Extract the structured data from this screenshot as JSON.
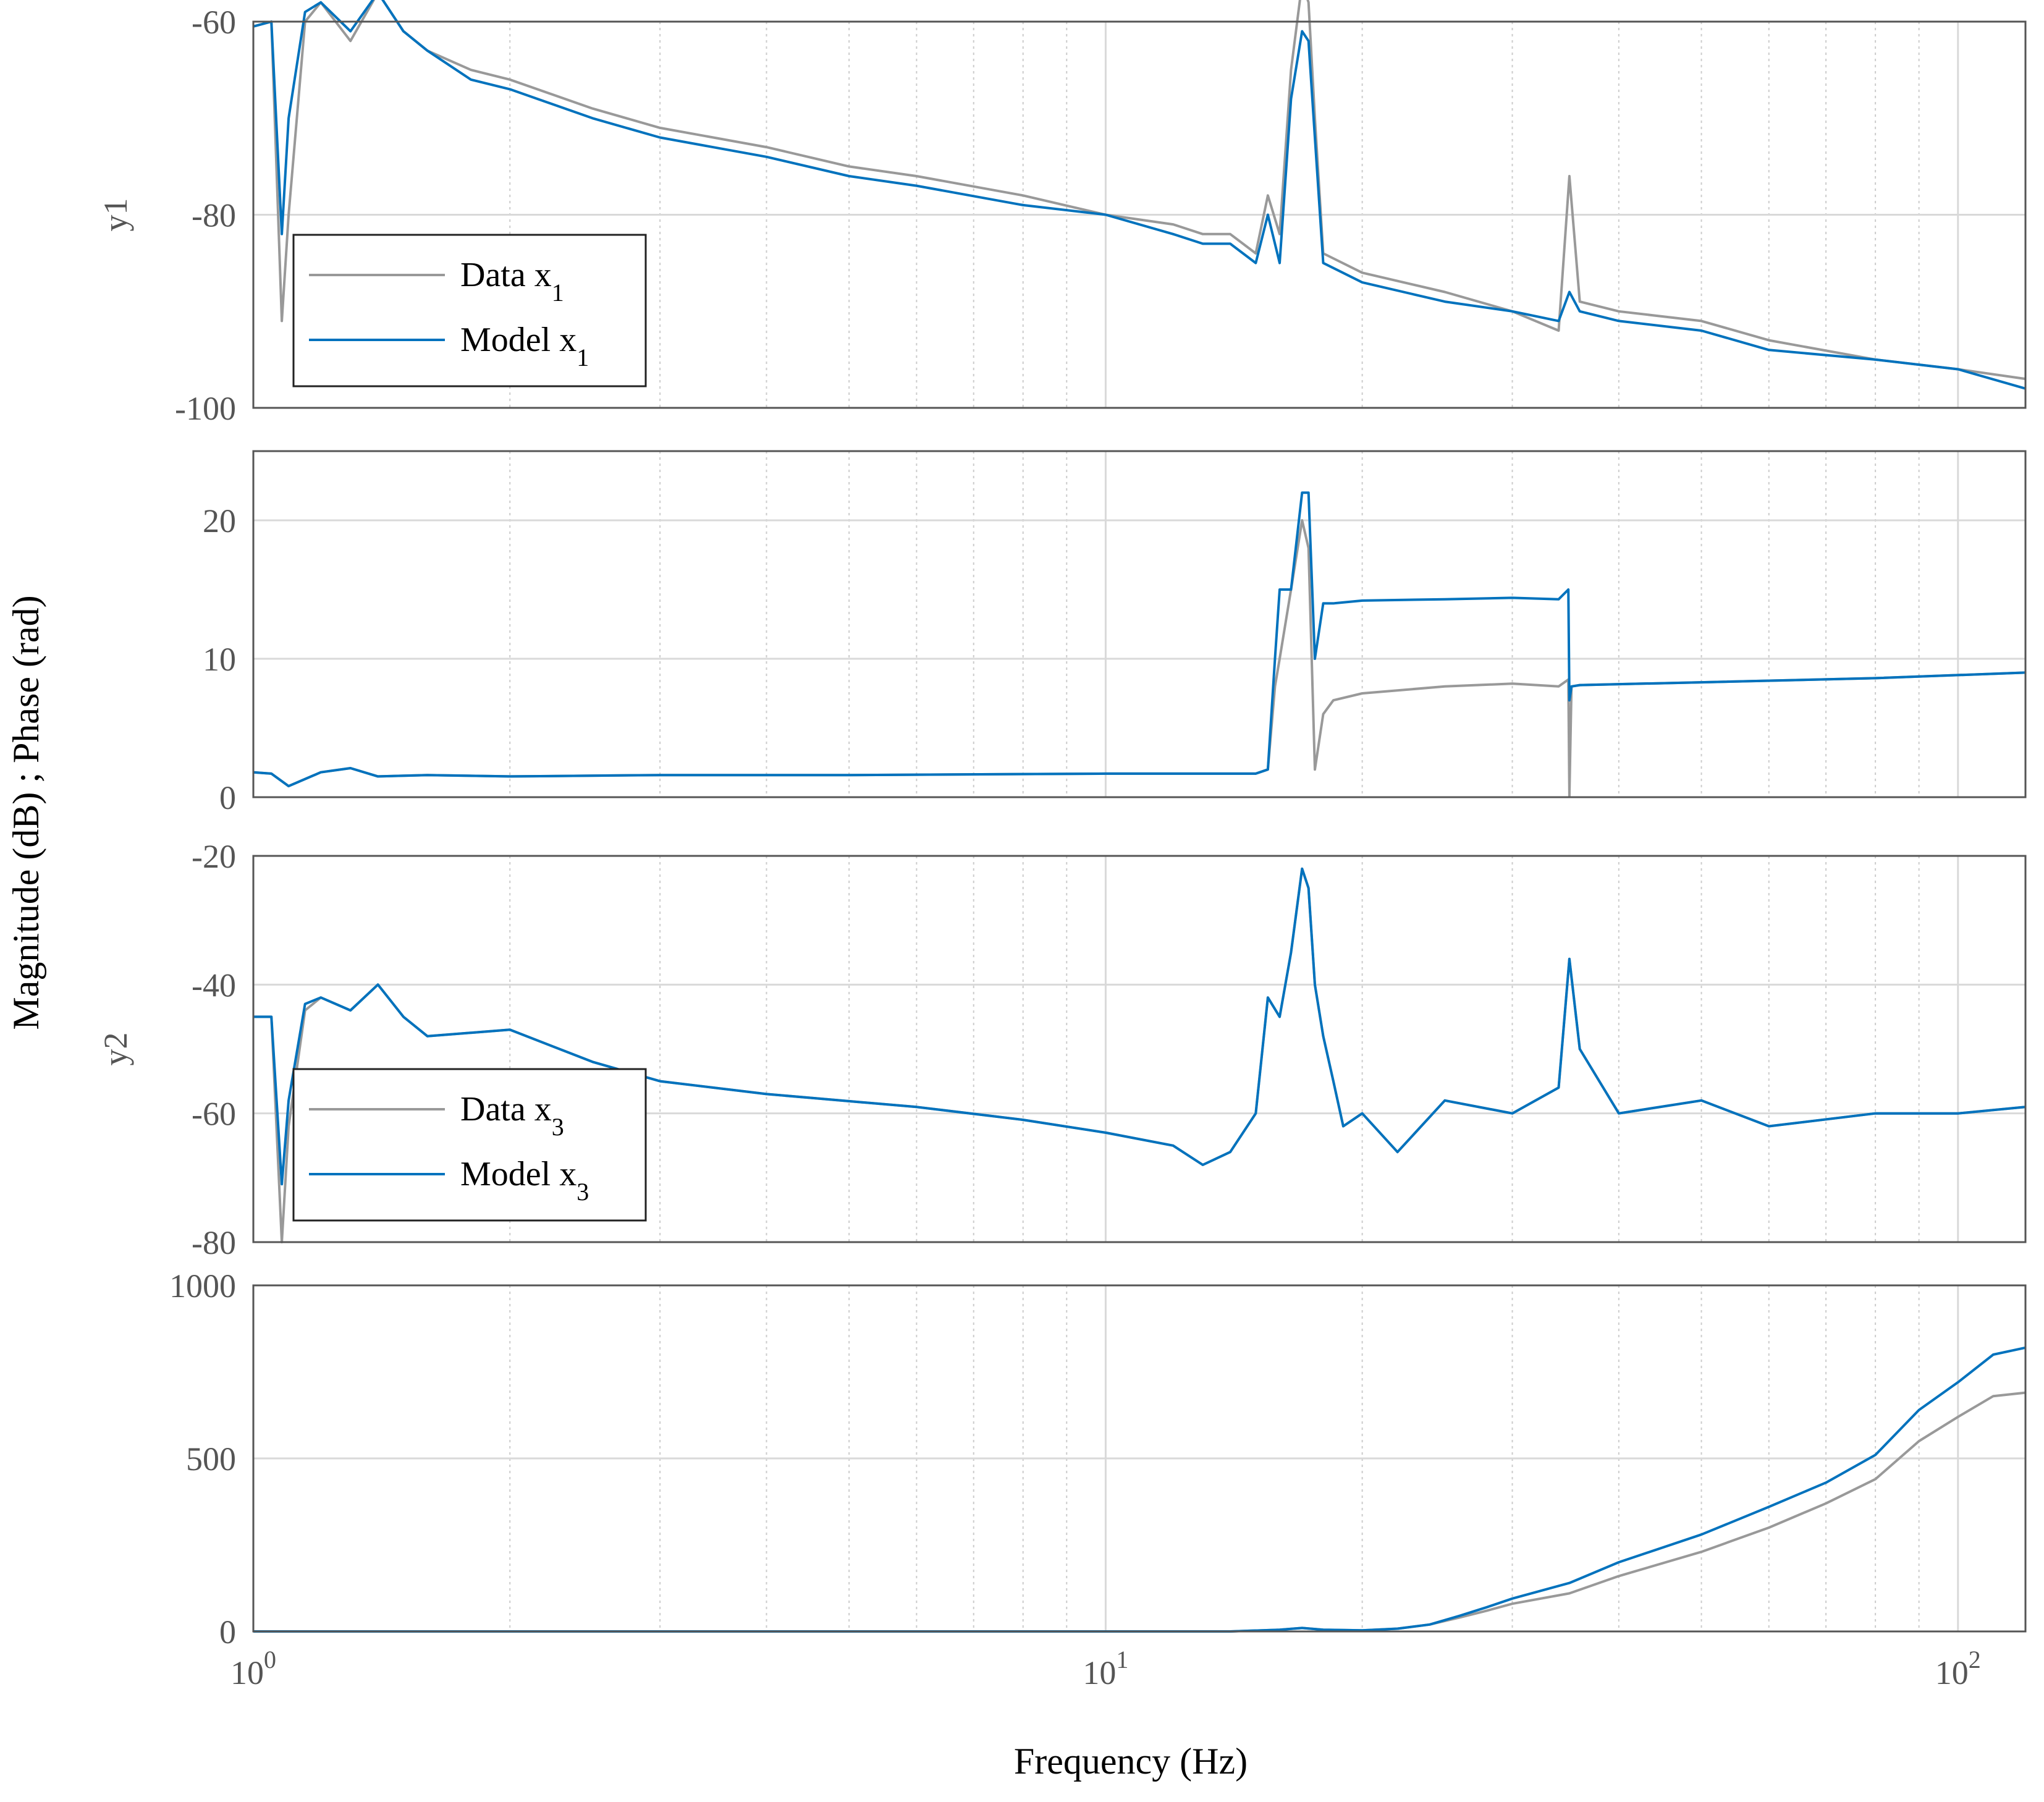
{
  "colors": {
    "data": "#999999",
    "model": "#0072BD",
    "axis": "#555555",
    "grid": "#d9d9d9"
  },
  "figure": {
    "ylabel": "Magnitude (dB) ; Phase (rad)",
    "xlabel": "Frequency  (Hz)",
    "x_tick_labels": [
      {
        "base": "10",
        "exp": "0"
      },
      {
        "base": "10",
        "exp": "1"
      },
      {
        "base": "10",
        "exp": "2"
      }
    ]
  },
  "chart_data": [
    {
      "type": "line",
      "xscale": "log",
      "xlim": [
        1,
        120
      ],
      "ylim": [
        -100,
        -60
      ],
      "grid": true,
      "ylabel": "y1",
      "ytick_labels": [
        "-60",
        "-80",
        "-100"
      ],
      "legend": {
        "location": "bottom-left",
        "entries": [
          {
            "text": "Data x",
            "sub": "1"
          },
          {
            "text": "Model x",
            "sub": "1"
          }
        ]
      },
      "series": [
        {
          "name": "Data x1",
          "x": [
            1.0,
            1.05,
            1.08,
            1.1,
            1.15,
            1.2,
            1.3,
            1.4,
            1.5,
            1.6,
            1.8,
            2.0,
            2.5,
            3.0,
            4.0,
            5.0,
            6.0,
            8.0,
            10.0,
            12.0,
            13.0,
            14.0,
            15.0,
            15.5,
            16.0,
            16.5,
            17.0,
            17.3,
            17.6,
            18.0,
            20.0,
            25.0,
            30.0,
            34.0,
            35.0,
            36.0,
            40.0,
            50.0,
            60.0,
            80.0,
            100.0,
            120.0
          ],
          "y": [
            -60.5,
            -60,
            -91,
            -80,
            -60,
            -58,
            -62,
            -57,
            -61,
            -63,
            -65,
            -66,
            -69,
            -71,
            -73,
            -75,
            -76,
            -78,
            -80,
            -81,
            -82,
            -82,
            -84,
            -78,
            -82,
            -65,
            -56,
            -58,
            -70,
            -84,
            -86,
            -88,
            -90,
            -92,
            -76,
            -89,
            -90,
            -91,
            -93,
            -95,
            -96,
            -97
          ]
        },
        {
          "name": "Model x1",
          "x": [
            1.0,
            1.05,
            1.08,
            1.1,
            1.15,
            1.2,
            1.3,
            1.4,
            1.5,
            1.6,
            1.8,
            2.0,
            2.5,
            3.0,
            4.0,
            5.0,
            6.0,
            8.0,
            10.0,
            12.0,
            13.0,
            14.0,
            15.0,
            15.5,
            16.0,
            16.5,
            17.0,
            17.3,
            17.6,
            18.0,
            20.0,
            25.0,
            30.0,
            34.0,
            35.0,
            36.0,
            40.0,
            50.0,
            60.0,
            80.0,
            100.0,
            120.0
          ],
          "y": [
            -60.5,
            -60,
            -82,
            -70,
            -59,
            -58,
            -61,
            -57,
            -61,
            -63,
            -66,
            -67,
            -70,
            -72,
            -74,
            -76,
            -77,
            -79,
            -80,
            -82,
            -83,
            -83,
            -85,
            -80,
            -85,
            -68,
            -61,
            -62,
            -72,
            -85,
            -87,
            -89,
            -90,
            -91,
            -88,
            -90,
            -91,
            -92,
            -94,
            -95,
            -96,
            -98
          ]
        }
      ]
    },
    {
      "type": "line",
      "xscale": "log",
      "xlim": [
        1,
        120
      ],
      "ylim": [
        0,
        25
      ],
      "grid": true,
      "ytick_labels": [
        "0",
        "10",
        "20"
      ],
      "series": [
        {
          "name": "Data x1",
          "x": [
            1.0,
            1.05,
            1.1,
            1.2,
            1.3,
            1.4,
            1.6,
            2.0,
            3.0,
            5.0,
            10.0,
            15.0,
            15.5,
            15.8,
            16.0,
            16.5,
            17.0,
            17.3,
            17.6,
            18.0,
            18.5,
            20.0,
            25.0,
            30.0,
            34.0,
            34.9,
            35.0,
            35.2,
            36.0,
            50.0,
            80.0,
            120.0
          ],
          "y": [
            1.8,
            1.7,
            0.8,
            1.8,
            2.1,
            1.5,
            1.6,
            1.5,
            1.6,
            1.6,
            1.7,
            1.7,
            2.0,
            8.0,
            10.0,
            15.0,
            20.0,
            18.0,
            2.0,
            6.0,
            7.0,
            7.5,
            8.0,
            8.2,
            8.0,
            8.5,
            0.1,
            8.0,
            8.1,
            8.3,
            8.6,
            9.0
          ]
        },
        {
          "name": "Model x1",
          "x": [
            1.0,
            1.05,
            1.1,
            1.2,
            1.3,
            1.4,
            1.6,
            2.0,
            3.0,
            5.0,
            10.0,
            15.0,
            15.5,
            15.8,
            16.0,
            16.5,
            17.0,
            17.3,
            17.6,
            18.0,
            18.5,
            20.0,
            25.0,
            30.0,
            34.0,
            34.9,
            35.0,
            35.2,
            36.0,
            50.0,
            80.0,
            120.0
          ],
          "y": [
            1.8,
            1.7,
            0.8,
            1.8,
            2.1,
            1.5,
            1.6,
            1.5,
            1.6,
            1.6,
            1.7,
            1.7,
            2.0,
            10.0,
            15.0,
            15.0,
            22.0,
            22.0,
            10.0,
            14.0,
            14.0,
            14.2,
            14.3,
            14.4,
            14.3,
            15.0,
            7.0,
            8.0,
            8.1,
            8.3,
            8.6,
            9.0
          ]
        }
      ]
    },
    {
      "type": "line",
      "xscale": "log",
      "xlim": [
        1,
        120
      ],
      "ylim": [
        -80,
        -20
      ],
      "grid": true,
      "ylabel": "y2",
      "ytick_labels": [
        "-20",
        "-40",
        "-60",
        "-80"
      ],
      "legend": {
        "location": "bottom-left",
        "entries": [
          {
            "text": "Data x",
            "sub": "3"
          },
          {
            "text": "Model x",
            "sub": "3"
          }
        ]
      },
      "series": [
        {
          "name": "Data x3",
          "x": [
            1.0,
            1.05,
            1.08,
            1.1,
            1.15,
            1.2,
            1.3,
            1.4,
            1.5,
            1.6,
            2.0,
            2.5,
            3.0,
            4.0,
            6.0,
            8.0,
            10.0,
            12.0,
            13.0,
            14.0,
            15.0,
            15.5,
            16.0,
            16.5,
            17.0,
            17.3,
            17.6,
            18.0,
            18.5,
            19.0,
            20.0,
            22.0,
            25.0,
            30.0,
            34.0,
            35.0,
            36.0,
            40.0,
            50.0,
            60.0,
            80.0,
            100.0,
            120.0
          ],
          "y": [
            -45,
            -45,
            -80,
            -62,
            -44,
            -42,
            -44,
            -40,
            -45,
            -48,
            -47,
            -52,
            -55,
            -57,
            -59,
            -61,
            -63,
            -65,
            -68,
            -66,
            -60,
            -42,
            -45,
            -35,
            -22,
            -25,
            -40,
            -48,
            -55,
            -62,
            -60,
            -66,
            -58,
            -60,
            -56,
            -36,
            -50,
            -60,
            -58,
            -62,
            -60,
            -60,
            -59
          ]
        },
        {
          "name": "Model x3",
          "x": [
            1.0,
            1.05,
            1.08,
            1.1,
            1.15,
            1.2,
            1.3,
            1.4,
            1.5,
            1.6,
            2.0,
            2.5,
            3.0,
            4.0,
            6.0,
            8.0,
            10.0,
            12.0,
            13.0,
            14.0,
            15.0,
            15.5,
            16.0,
            16.5,
            17.0,
            17.3,
            17.6,
            18.0,
            18.5,
            19.0,
            20.0,
            22.0,
            25.0,
            30.0,
            34.0,
            35.0,
            36.0,
            40.0,
            50.0,
            60.0,
            80.0,
            100.0,
            120.0
          ],
          "y": [
            -45,
            -45,
            -71,
            -58,
            -43,
            -42,
            -44,
            -40,
            -45,
            -48,
            -47,
            -52,
            -55,
            -57,
            -59,
            -61,
            -63,
            -65,
            -68,
            -66,
            -60,
            -42,
            -45,
            -35,
            -22,
            -25,
            -40,
            -48,
            -55,
            -62,
            -60,
            -66,
            -58,
            -60,
            -56,
            -36,
            -50,
            -60,
            -58,
            -62,
            -60,
            -60,
            -59
          ]
        }
      ]
    },
    {
      "type": "line",
      "xscale": "log",
      "xlim": [
        1,
        120
      ],
      "ylim": [
        0,
        1000
      ],
      "grid": true,
      "ytick_labels": [
        "0",
        "500",
        "1000"
      ],
      "series": [
        {
          "name": "Data x1",
          "x": [
            1.0,
            14.0,
            16.0,
            17.0,
            18.0,
            20.0,
            22.0,
            24.0,
            26.0,
            28.0,
            30.0,
            35.0,
            40.0,
            50.0,
            60.0,
            70.0,
            80.0,
            90.0,
            100.0,
            110.0,
            120.0
          ],
          "y": [
            0,
            0,
            5,
            10,
            5,
            3,
            8,
            20,
            40,
            60,
            80,
            110,
            160,
            230,
            300,
            370,
            440,
            550,
            620,
            680,
            690
          ]
        },
        {
          "name": "Model x1",
          "x": [
            1.0,
            14.0,
            16.0,
            17.0,
            18.0,
            20.0,
            22.0,
            24.0,
            26.0,
            28.0,
            30.0,
            35.0,
            40.0,
            50.0,
            60.0,
            70.0,
            80.0,
            90.0,
            100.0,
            110.0,
            120.0
          ],
          "y": [
            0,
            0,
            5,
            10,
            5,
            3,
            8,
            20,
            45,
            70,
            95,
            140,
            200,
            280,
            360,
            430,
            510,
            640,
            720,
            800,
            820
          ]
        }
      ]
    }
  ]
}
